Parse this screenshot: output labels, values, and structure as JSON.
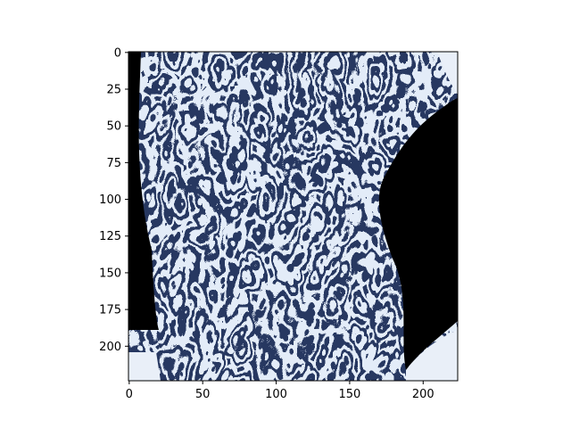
{
  "chart_data": {
    "type": "heatmap",
    "title": "",
    "xlabel": "",
    "ylabel": "",
    "description_values_note": "",
    "image_shape": [
      224,
      224
    ],
    "xlim": [
      -0.5,
      223.5
    ],
    "ylim": [
      223.5,
      -0.5
    ],
    "x_ticks": [
      0,
      50,
      100,
      150,
      200
    ],
    "y_ticks": [
      0,
      25,
      50,
      75,
      100,
      125,
      150,
      175,
      200
    ],
    "x_tick_labels": [
      "0",
      "50",
      "100",
      "150",
      "200"
    ],
    "y_tick_labels": [
      "0",
      "25",
      "50",
      "75",
      "100",
      "125",
      "150",
      "175",
      "200"
    ],
    "colormap": [
      "#ffffff",
      "#b7cbe7",
      "#4f6fa3",
      "#1a2d57",
      "#000000"
    ],
    "grid": false
  }
}
